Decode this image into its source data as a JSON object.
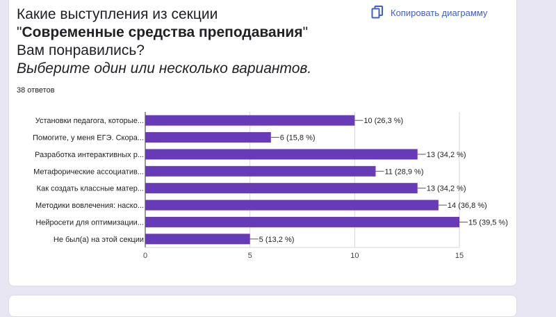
{
  "question": {
    "line1": "Какие выступления из секции",
    "quote_open": "\"",
    "bold": "Современные средства преподавания",
    "quote_close": "\"",
    "line3": "Вам понравились?",
    "italic": "Выберите один или несколько вариантов."
  },
  "responses_count": "38 ответов",
  "copy_button": {
    "label": "Копировать диаграмму",
    "icon": "copy-icon"
  },
  "colors": {
    "bar": "#673ab7",
    "link": "#3d5fcf",
    "background": "#e9e6f3"
  },
  "chart_data": {
    "type": "bar",
    "orientation": "horizontal",
    "categories": [
      "Установки педагога, которые...",
      "Помогите, у меня ЕГЭ. Скора...",
      "Разработка интерактивных р...",
      "Метафорические ассоциатив...",
      "Как создать классные матер...",
      "Методики вовлечения: наско...",
      "Нейросети для оптимизации...",
      "Не был(а) на этой секции"
    ],
    "values": [
      10,
      6,
      13,
      11,
      13,
      14,
      15,
      5
    ],
    "labels": [
      "10 (26,3 %)",
      "6 (15,8 %)",
      "13 (34,2 %)",
      "11 (28,9 %)",
      "13 (34,2 %)",
      "14 (36,8 %)",
      "15 (39,5 %)",
      "5 (13,2 %)"
    ],
    "xticks": [
      0,
      5,
      10,
      15
    ],
    "xlim": [
      0,
      15
    ],
    "grid": true
  }
}
